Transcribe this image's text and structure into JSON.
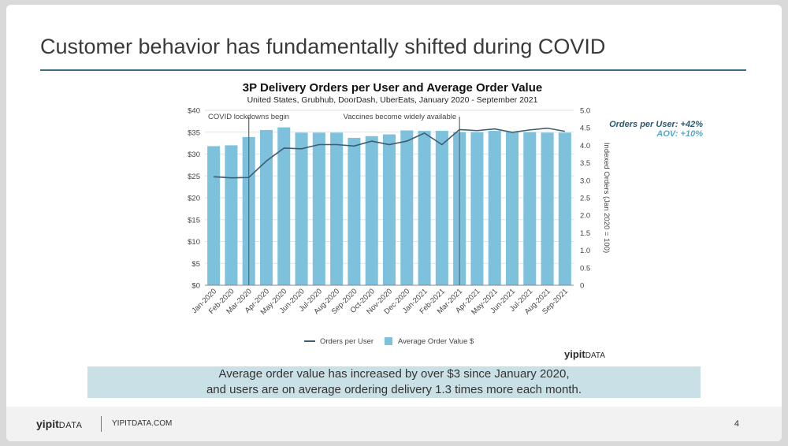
{
  "slide": {
    "title": "Customer behavior has fundamentally shifted during COVID",
    "callout": {
      "line1": "Average order value has increased by over $3 since January 2020,",
      "line2": "and users are on average ordering delivery 1.3 times more each month."
    },
    "footer": {
      "brand_bold": "yipit",
      "brand_rest": "DATA",
      "url": "YIPITDATA.COM",
      "page": "4"
    },
    "watermark": {
      "brand_bold": "yipit",
      "brand_rest": "DATA"
    }
  },
  "colors": {
    "bar": "#7dc1dc",
    "line": "#3f5d6e",
    "callout_bg": "#c9e1e6",
    "rule": "#3d6f87",
    "ann_dark": "#2c5872",
    "ann_light": "#5aa9c9"
  },
  "chart_data": {
    "type": "bar",
    "title": "3P Delivery Orders per User and Average Order Value",
    "subtitle": "United States, Grubhub, DoorDash, UberEats, January 2020 - September 2021",
    "categories": [
      "Jan-2020",
      "Feb-2020",
      "Mar-2020",
      "Apr-2020",
      "May-2020",
      "Jun-2020",
      "Jul-2020",
      "Aug-2020",
      "Sep-2020",
      "Oct-2020",
      "Nov-2020",
      "Dec-2020",
      "Jan-2021",
      "Feb-2021",
      "Mar-2021",
      "Apr-2021",
      "May-2021",
      "Jun-2021",
      "Jul-2021",
      "Aug-2021",
      "Sep-2021"
    ],
    "series": [
      {
        "name": "Average Order Value $",
        "type": "bar",
        "axis": "left",
        "values": [
          31.8,
          32.0,
          33.9,
          35.5,
          36.1,
          34.9,
          34.9,
          34.9,
          33.7,
          34.1,
          34.5,
          35.4,
          35.3,
          35.3,
          35.0,
          35.0,
          35.3,
          35.0,
          35.0,
          34.9,
          34.9
        ]
      },
      {
        "name": "Orders per User",
        "type": "line",
        "axis": "right",
        "values": [
          3.1,
          3.07,
          3.08,
          3.55,
          3.92,
          3.9,
          4.02,
          4.02,
          3.98,
          4.12,
          4.02,
          4.12,
          4.35,
          4.02,
          4.45,
          4.42,
          4.47,
          4.37,
          4.44,
          4.49,
          4.4
        ]
      }
    ],
    "y_left": {
      "min": 0,
      "max": 40,
      "ticks": [
        "$0",
        "$5",
        "$10",
        "$15",
        "$20",
        "$25",
        "$30",
        "$35",
        "$40"
      ]
    },
    "y_right": {
      "min": 0,
      "max": 5,
      "label": "Indexed Orders (Jan 2020 = 100)",
      "ticks": [
        "0",
        "0.5",
        "1.0",
        "1.5",
        "2.0",
        "2.5",
        "3.0",
        "3.5",
        "4.0",
        "4.5",
        "5.0"
      ]
    },
    "annotations": [
      {
        "text": "COVID lockdowns begin",
        "at": "Mar-2020"
      },
      {
        "text": "Vaccines become widely available",
        "at": "Mar-2021"
      }
    ],
    "callouts": [
      {
        "text": "Orders per User: +42%"
      },
      {
        "text": "AOV: +10%"
      }
    ],
    "legend": {
      "position": "bottom"
    },
    "grid": true
  }
}
